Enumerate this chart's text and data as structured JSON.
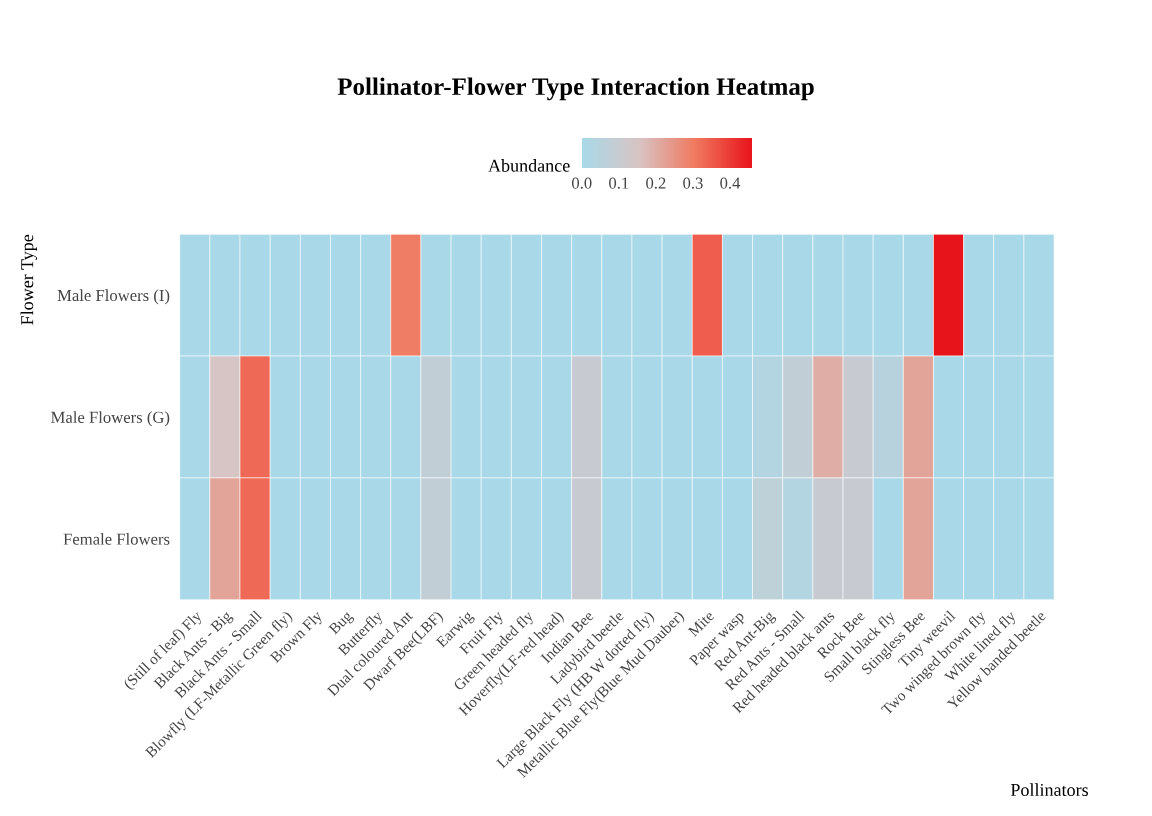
{
  "chart_data": {
    "type": "heatmap",
    "title": "Pollinator-Flower Type Interaction Heatmap",
    "xlabel": "Pollinators",
    "ylabel": "Flower Type",
    "clabel": "Abundance",
    "categories": [
      "(Still of leaf) Fly",
      "Black Ants - Big",
      "Black Ants - Small",
      "Blowfly (LF-Metallic Green fly)",
      "Brown Fly",
      "Bug",
      "Butterfly",
      "Dual coloured Ant",
      "Dwarf Bee(LBF)",
      "Earwig",
      "Fruit Fly",
      "Green headed fly",
      "Hoverfly(LF-red head)",
      "Indian Bee",
      "Ladybird beetle",
      "Large Black Fly (HB W dotted fly)",
      "Metallic Blue Fly(Blue Mud Dauber)",
      "Mite",
      "Paper wasp",
      "Red Ant-Big",
      "Red Ants - Small",
      "Red headed black ants",
      "Rock Bee",
      "Small black fly",
      "Stingless Bee",
      "Tiny weevil",
      "Two winged brown fly",
      "White lined fly",
      "Yellow banded beetle"
    ],
    "y_categories": [
      "Male Flowers (I)",
      "Male Flowers (G)",
      "Female Flowers"
    ],
    "cells": [
      [
        0,
        0,
        0,
        0,
        0,
        0,
        0,
        0.3,
        0,
        0,
        0,
        0,
        0,
        0,
        0,
        0,
        0,
        0.35,
        0,
        0,
        0,
        0,
        0,
        0,
        0,
        0.46,
        0,
        0,
        0
      ],
      [
        0,
        0.15,
        0.33,
        0,
        0,
        0,
        0,
        0,
        0.08,
        0,
        0,
        0,
        0,
        0.1,
        0,
        0,
        0,
        0,
        0,
        0.03,
        0.08,
        0.2,
        0.1,
        0.05,
        0.22,
        0,
        0,
        0,
        0
      ],
      [
        0,
        0.22,
        0.33,
        0,
        0,
        0,
        0,
        0,
        0.08,
        0,
        0,
        0,
        0,
        0.1,
        0,
        0,
        0,
        0,
        0,
        0.07,
        0.03,
        0.1,
        0.1,
        0,
        0.22,
        0,
        0,
        0,
        0
      ]
    ],
    "clim": [
      0,
      0.46
    ],
    "cticks": [
      {
        "value": 0,
        "label": "0.0"
      },
      {
        "value": 0.1,
        "label": "0.1"
      },
      {
        "value": 0.2,
        "label": "0.2"
      },
      {
        "value": 0.3,
        "label": "0.3"
      },
      {
        "value": 0.4,
        "label": "0.4"
      }
    ]
  }
}
